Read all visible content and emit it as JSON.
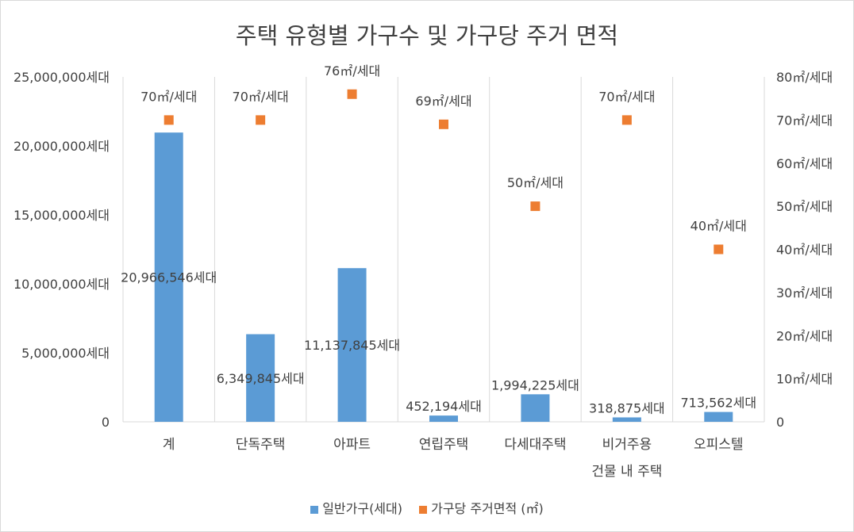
{
  "chart_data": {
    "type": "bar",
    "title": "주택 유형별 가구수 및 가구당 주거 면적",
    "categories": [
      [
        "계"
      ],
      [
        "단독주택"
      ],
      [
        "아파트"
      ],
      [
        "연립주택"
      ],
      [
        "다세대주택"
      ],
      [
        "비거주용",
        "건물 내 주택"
      ],
      [
        "오피스텔"
      ]
    ],
    "series": [
      {
        "name": "일반가구(세대)",
        "type": "bar",
        "axis": "left",
        "color": "#5b9bd5",
        "values": [
          20966546,
          6349845,
          11137845,
          452194,
          1994225,
          318875,
          713562
        ],
        "labels": [
          "20,966,546세대",
          "6,349,845세대",
          "11,137,845세대",
          "452,194세대",
          "1,994,225세대",
          "318,875세대",
          "713,562세대"
        ]
      },
      {
        "name": "가구당 주거면적 (㎡)",
        "type": "scatter",
        "axis": "right",
        "color": "#ed7d31",
        "values": [
          70,
          70,
          76,
          69,
          50,
          70,
          40
        ],
        "labels": [
          "70㎡/세대",
          "70㎡/세대",
          "76㎡/세대",
          "69㎡/세대",
          "50㎡/세대",
          "70㎡/세대",
          "40㎡/세대"
        ]
      }
    ],
    "y_left": {
      "range": [
        0,
        25000000
      ],
      "ticks": [
        "0",
        "5,000,000세대",
        "10,000,000세대",
        "15,000,000세대",
        "20,000,000세대",
        "25,000,000세대"
      ]
    },
    "y_right": {
      "range": [
        0,
        80
      ],
      "ticks": [
        "0",
        "10㎡/세대",
        "20㎡/세대",
        "30㎡/세대",
        "40㎡/세대",
        "50㎡/세대",
        "60㎡/세대",
        "70㎡/세대",
        "80㎡/세대"
      ]
    },
    "grid": "vertical category separators",
    "legend_position": "bottom"
  }
}
